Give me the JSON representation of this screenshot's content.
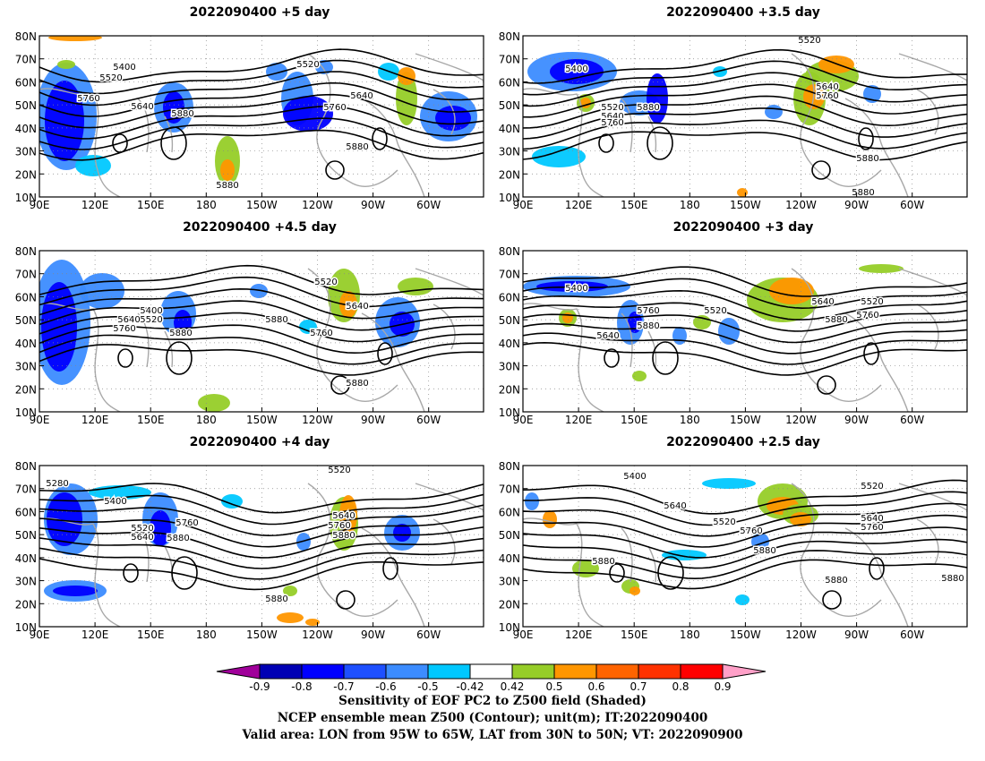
{
  "panels": [
    {
      "title": "2022090400  +5 day",
      "contour_labels": [
        "5400",
        "5520",
        "5520",
        "5760",
        "5640",
        "5880",
        "5640",
        "5760",
        "5880",
        "5880"
      ]
    },
    {
      "title": "2022090400  +3.5 day",
      "contour_labels": [
        "5400",
        "5520",
        "5520",
        "5640",
        "5760",
        "5880",
        "5640",
        "5760",
        "5880",
        "5880"
      ]
    },
    {
      "title": "2022090400  +4.5 day",
      "contour_labels": [
        "5400",
        "5520",
        "5640",
        "5760",
        "5880",
        "5520",
        "5880",
        "5640",
        "5760",
        "5880"
      ]
    },
    {
      "title": "2022090400  +3 day",
      "contour_labels": [
        "5400",
        "5760",
        "5880",
        "5640",
        "5520",
        "5640",
        "5520",
        "5880",
        "5760"
      ]
    },
    {
      "title": "2022090400  +4 day",
      "contour_labels": [
        "5280",
        "5400",
        "5520",
        "5640",
        "5760",
        "5880",
        "5520",
        "5640",
        "5760",
        "5880",
        "5880"
      ]
    },
    {
      "title": "2022090400  +2.5 day",
      "contour_labels": [
        "5400",
        "5640",
        "5520",
        "5760",
        "5880",
        "5520",
        "5640",
        "5760",
        "5880",
        "5880",
        "5880"
      ]
    }
  ],
  "lat_ticks": [
    "80N",
    "70N",
    "60N",
    "50N",
    "40N",
    "30N",
    "20N",
    "10N"
  ],
  "lon_ticks": [
    "90E",
    "120E",
    "150E",
    "180",
    "150W",
    "120W",
    "90W",
    "60W"
  ],
  "colorbar": {
    "values": [
      "-0.9",
      "-0.8",
      "-0.7",
      "-0.6",
      "-0.5",
      "-0.42",
      "0.42",
      "0.5",
      "0.6",
      "0.7",
      "0.8",
      "0.9"
    ],
    "colors": [
      "#a0009a",
      "#0000b4",
      "#0000ff",
      "#1e50ff",
      "#3c8cff",
      "#00c8ff",
      "#ffffff",
      "#96cd28",
      "#ff9600",
      "#ff6400",
      "#ff3200",
      "#ff0000",
      "#ffa0c8"
    ]
  },
  "footer": {
    "line1": "Sensitivity of EOF PC2 to Z500 field (Shaded)",
    "line2": "NCEP ensemble mean Z500 (Contour); unit(m); IT:2022090400",
    "line3": "Valid area: LON from 95W to 65W, LAT from 30N to 50N; VT: 2022090900"
  }
}
